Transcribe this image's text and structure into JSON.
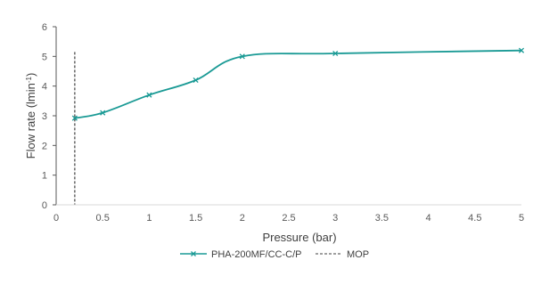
{
  "chart_data": {
    "type": "line",
    "title": "",
    "xlabel": "Pressure (bar)",
    "ylabel_main": "Flow rate (lmin",
    "ylabel_sup": "-1",
    "ylabel_close": ")",
    "xlim": [
      0,
      5
    ],
    "ylim": [
      0,
      6
    ],
    "x_ticks": [
      0,
      0.5,
      1,
      1.5,
      2,
      2.5,
      3,
      3.5,
      4,
      4.5,
      5
    ],
    "y_ticks": [
      0,
      1,
      2,
      3,
      4,
      5,
      6
    ],
    "grid": false,
    "legend_position": "bottom",
    "series": [
      {
        "name": "PHA-200MF/CC-C/P",
        "color": "#1a9a95",
        "marker": "x",
        "x": [
          0.2,
          0.5,
          1,
          1.5,
          2,
          3,
          5
        ],
        "y": [
          2.92,
          3.1,
          3.7,
          4.2,
          5.0,
          5.1,
          5.2
        ]
      }
    ],
    "reference_lines": [
      {
        "name": "MOP",
        "orientation": "vertical",
        "x": 0.2,
        "style": "dashed",
        "color": "#404040"
      }
    ]
  }
}
